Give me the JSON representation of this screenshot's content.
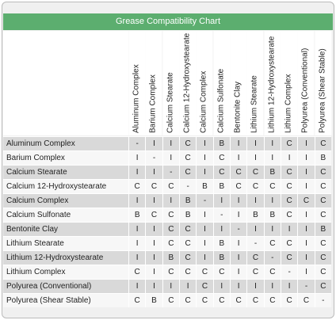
{
  "header": {
    "title": "Grease Compatibility Chart"
  },
  "table": {
    "columns": [
      "Aluminum Complex",
      "Barium Complex",
      "Calcium Stearate",
      "Calcium 12-Hydroxystearate",
      "Calcium Complex",
      "Calcium Sulfonate",
      "Bentonite Clay",
      "Lithium Stearate",
      "Lithium 12-Hydroxystearate",
      "Lithium Complex",
      "Polyurea (Conventional)",
      "Polyurea (Shear Stable)"
    ],
    "rows": [
      {
        "label": "Aluminum Complex",
        "cells": [
          "-",
          "I",
          "I",
          "C",
          "I",
          "B",
          "I",
          "I",
          "I",
          "C",
          "I",
          "C"
        ]
      },
      {
        "label": "Barium Complex",
        "cells": [
          "I",
          "-",
          "I",
          "C",
          "I",
          "C",
          "I",
          "I",
          "I",
          "I",
          "I",
          "B"
        ]
      },
      {
        "label": "Calcium Stearate",
        "cells": [
          "I",
          "I",
          "-",
          "C",
          "I",
          "C",
          "C",
          "C",
          "B",
          "C",
          "I",
          "C"
        ]
      },
      {
        "label": "Calcium 12-Hydroxystearate",
        "cells": [
          "C",
          "C",
          "C",
          "-",
          "B",
          "B",
          "C",
          "C",
          "C",
          "C",
          "I",
          "C"
        ]
      },
      {
        "label": "Calcium Complex",
        "cells": [
          "I",
          "I",
          "I",
          "B",
          "-",
          "I",
          "I",
          "I",
          "I",
          "C",
          "C",
          "C"
        ]
      },
      {
        "label": "Calcium Sulfonate",
        "cells": [
          "B",
          "C",
          "C",
          "B",
          "I",
          "-",
          "I",
          "B",
          "B",
          "C",
          "I",
          "C"
        ]
      },
      {
        "label": "Bentonite Clay",
        "cells": [
          "I",
          "I",
          "C",
          "C",
          "I",
          "I",
          "-",
          "I",
          "I",
          "I",
          "I",
          "B"
        ]
      },
      {
        "label": "Lithium Stearate",
        "cells": [
          "I",
          "I",
          "C",
          "C",
          "I",
          "B",
          "I",
          "-",
          "C",
          "C",
          "I",
          "C"
        ]
      },
      {
        "label": "Lithium 12-Hydroxystearate",
        "cells": [
          "I",
          "I",
          "B",
          "C",
          "I",
          "B",
          "I",
          "C",
          "-",
          "C",
          "I",
          "C"
        ]
      },
      {
        "label": "Lithium Complex",
        "cells": [
          "C",
          "I",
          "C",
          "C",
          "C",
          "C",
          "I",
          "C",
          "C",
          "-",
          "I",
          "C"
        ]
      },
      {
        "label": "Polyurea (Conventional)",
        "cells": [
          "I",
          "I",
          "I",
          "I",
          "C",
          "I",
          "I",
          "I",
          "I",
          "I",
          "-",
          "C"
        ]
      },
      {
        "label": "Polyurea (Shear Stable)",
        "cells": [
          "C",
          "B",
          "C",
          "C",
          "C",
          "C",
          "C",
          "C",
          "C",
          "C",
          "C",
          "-"
        ]
      }
    ]
  }
}
